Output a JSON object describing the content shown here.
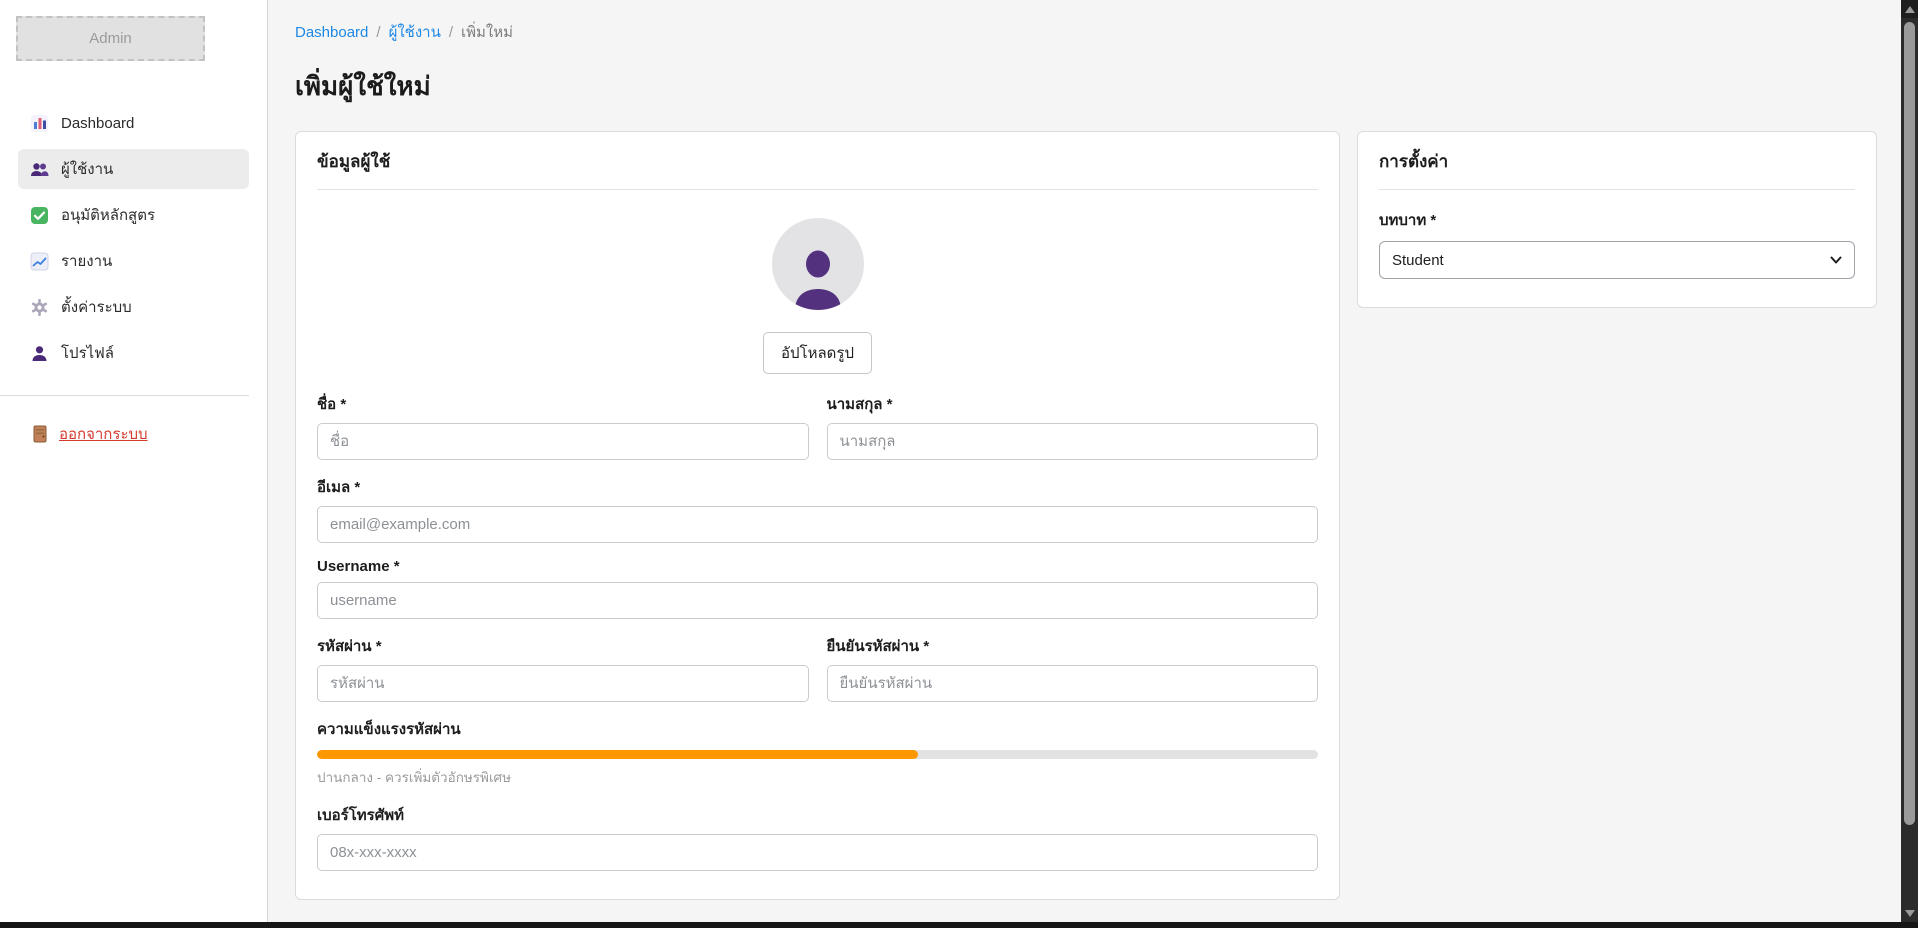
{
  "theme": {
    "link_blue": "#1e88e5",
    "logout_red": "#d43a2e",
    "progress_orange": "#ff9800",
    "avatar_purple": "#53317e",
    "sidebar_active_bg": "#ececec"
  },
  "sidebar": {
    "logo_text": "Admin",
    "items": [
      {
        "label": "Dashboard",
        "icon": "bar-chart-icon",
        "active": false
      },
      {
        "label": "ผู้ใช้งาน",
        "icon": "users-icon",
        "active": true
      },
      {
        "label": "อนุมัติหลักสูตร",
        "icon": "approve-check-icon",
        "active": false
      },
      {
        "label": "รายงาน",
        "icon": "line-chart-icon",
        "active": false
      },
      {
        "label": "ตั้งค่าระบบ",
        "icon": "gear-icon",
        "active": false
      },
      {
        "label": "โปรไฟล์",
        "icon": "person-icon",
        "active": false
      }
    ],
    "logout_label": "ออกจากระบบ"
  },
  "breadcrumb": {
    "separator": "/",
    "items": [
      {
        "label": "Dashboard",
        "link": true
      },
      {
        "label": "ผู้ใช้งาน",
        "link": true
      },
      {
        "label": "เพิ่มใหม่",
        "link": false
      }
    ]
  },
  "page": {
    "title": "เพิ่มผู้ใช้ใหม่"
  },
  "user_form": {
    "card_title": "ข้อมูลผู้ใช้",
    "upload_button_label": "อัปโหลดรูป",
    "fields": {
      "first_name": {
        "label": "ชื่อ *",
        "placeholder": "ชื่อ",
        "value": ""
      },
      "last_name": {
        "label": "นามสกุล *",
        "placeholder": "นามสกุล",
        "value": ""
      },
      "email": {
        "label": "อีเมล *",
        "placeholder": "email@example.com",
        "value": ""
      },
      "username": {
        "label": "Username *",
        "placeholder": "username",
        "value": ""
      },
      "password": {
        "label": "รหัสผ่าน *",
        "placeholder": "รหัสผ่าน",
        "value": ""
      },
      "confirm_password": {
        "label": "ยืนยันรหัสผ่าน *",
        "placeholder": "ยืนยันรหัสผ่าน",
        "value": ""
      },
      "phone": {
        "label": "เบอร์โทรศัพท์",
        "placeholder": "08x-xxx-xxxx",
        "value": ""
      }
    },
    "password_strength": {
      "label": "ความแข็งแรงรหัสผ่าน",
      "percent": 60,
      "bar_color": "#ff9800",
      "caption": "ปานกลาง - ควรเพิ่มตัวอักษรพิเศษ"
    }
  },
  "settings_card": {
    "title": "การตั้งค่า",
    "role_label": "บทบาท *",
    "role_selected": "Student"
  }
}
